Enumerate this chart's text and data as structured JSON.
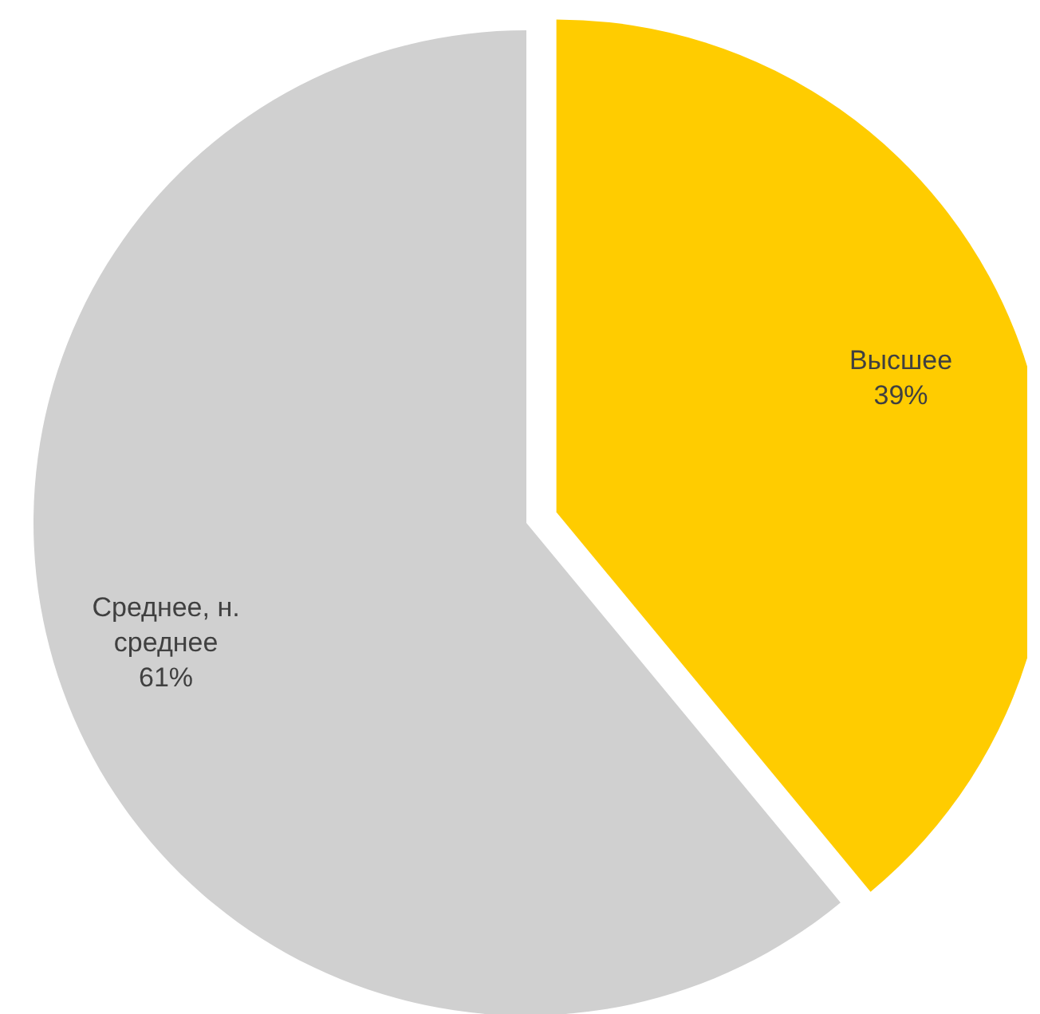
{
  "chart_data": {
    "type": "pie",
    "categories": [
      "Высшее",
      "Среднее, н. среднее"
    ],
    "values": [
      39,
      61
    ],
    "colors": [
      "#ffcc00",
      "#d0d0d0"
    ],
    "value_labels": [
      "39%",
      "61%"
    ]
  }
}
